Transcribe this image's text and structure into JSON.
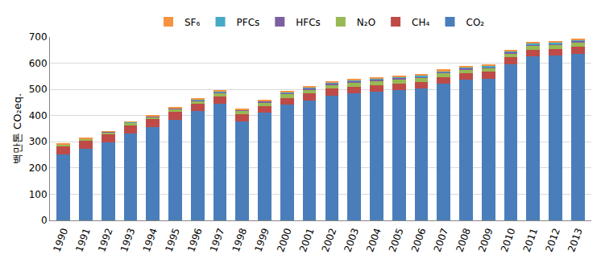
{
  "chart_data": {
    "type": "bar",
    "stacked": true,
    "y_label": "백만톤 CO₂eq.",
    "categories": [
      "1990",
      "1991",
      "1992",
      "1993",
      "1994",
      "1995",
      "1996",
      "1997",
      "1998",
      "1999",
      "2000",
      "2001",
      "2002",
      "2003",
      "2004",
      "2005",
      "2006",
      "2007",
      "2008",
      "2009",
      "2010",
      "2011",
      "2012",
      "2013"
    ],
    "series": [
      {
        "name": "CO₂",
        "color": "#4a7ebb",
        "values": [
          252,
          273,
          298,
          333,
          357,
          385,
          417,
          446,
          378,
          410,
          441,
          458,
          475,
          484,
          491,
          497,
          503,
          522,
          536,
          541,
          596,
          625,
          628,
          637
        ]
      },
      {
        "name": "CH₄",
        "color": "#be4b48",
        "values": [
          31,
          31,
          31,
          30,
          29,
          28,
          28,
          27,
          27,
          27,
          27,
          27,
          27,
          27,
          26,
          26,
          26,
          26,
          26,
          26,
          27,
          27,
          27,
          27
        ]
      },
      {
        "name": "N₂O",
        "color": "#98b954",
        "values": [
          6,
          7,
          8,
          9,
          10,
          11,
          12,
          13,
          13,
          14,
          15,
          15,
          15,
          15,
          15,
          15,
          15,
          15,
          14,
          14,
          13,
          13,
          13,
          14
        ]
      },
      {
        "name": "HFCs",
        "color": "#7d60a0",
        "values": [
          1,
          1,
          1,
          2,
          2,
          3,
          3,
          4,
          3,
          4,
          5,
          4,
          5,
          6,
          7,
          7,
          5,
          4,
          5,
          5,
          6,
          7,
          7,
          7
        ]
      },
      {
        "name": "PFCs",
        "color": "#46aac5",
        "values": [
          1,
          1,
          1,
          1,
          1,
          2,
          2,
          2,
          2,
          2,
          3,
          3,
          3,
          3,
          3,
          3,
          3,
          3,
          3,
          3,
          3,
          3,
          3,
          3
        ]
      },
      {
        "name": "SF₆",
        "color": "#f69240",
        "values": [
          1,
          1,
          1,
          1,
          1,
          2,
          3,
          3,
          2,
          3,
          4,
          3,
          4,
          5,
          6,
          6,
          7,
          6,
          6,
          7,
          7,
          7,
          7,
          7
        ]
      }
    ],
    "ylim": [
      0,
      700
    ],
    "yticks": [
      0,
      100,
      200,
      300,
      400,
      500,
      600,
      700
    ],
    "grid": true,
    "legend": "top"
  }
}
